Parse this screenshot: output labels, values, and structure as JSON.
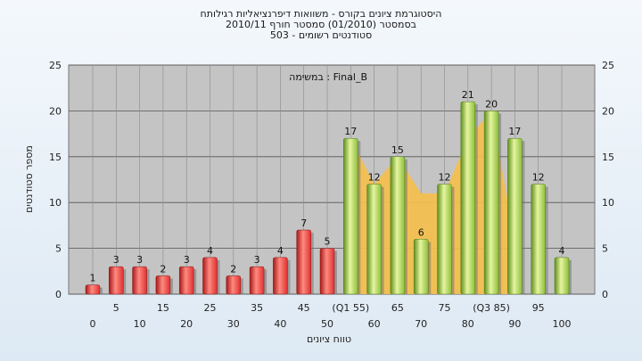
{
  "titles": {
    "line1": "היסטוגרמת ציונים בקורס - משוואות דיפרנציאליות רגילותח",
    "line2": "בסמסטר (01/2010) סמסטר חורף 2010/11",
    "line3": "503 - סטודנטים רשומים"
  },
  "colors": {
    "below_bar": "#e03030",
    "above_bar": "#8cbf3a",
    "area_fill": "#f5c04a",
    "plot_bg": "#c4c4c4"
  },
  "chart_data": {
    "type": "bar",
    "title": "",
    "legend_label": "במשימה : Final_B",
    "xlabel": "טווח ציונים",
    "ylabel": "מספר סטודנטים",
    "ylim": [
      0,
      25
    ],
    "yticks": [
      0,
      5,
      10,
      15,
      20,
      25
    ],
    "grid": true,
    "x_ticks_row1": [
      "5",
      "15",
      "25",
      "35",
      "45",
      "(Q1 55)",
      "65",
      "75",
      "(Q3 85)",
      "95"
    ],
    "x_ticks_row2": [
      "0",
      "10",
      "20",
      "30",
      "40",
      "50",
      "60",
      "70",
      "80",
      "90",
      "100"
    ],
    "categories": [
      0,
      5,
      10,
      15,
      20,
      25,
      30,
      35,
      40,
      45,
      50,
      55,
      60,
      65,
      70,
      75,
      80,
      85,
      90,
      95,
      100
    ],
    "values": [
      1,
      3,
      3,
      2,
      3,
      4,
      2,
      3,
      4,
      7,
      5,
      17,
      12,
      15,
      6,
      12,
      21,
      20,
      17,
      12,
      4
    ],
    "series": [
      {
        "name": "below",
        "range": [
          0,
          10
        ]
      },
      {
        "name": "above",
        "range": [
          11,
          20
        ]
      }
    ],
    "area": {
      "x": [
        55,
        60,
        65,
        70,
        75,
        80,
        85,
        90
      ],
      "y": [
        17,
        12,
        15,
        11,
        11,
        17,
        20,
        6
      ]
    }
  }
}
